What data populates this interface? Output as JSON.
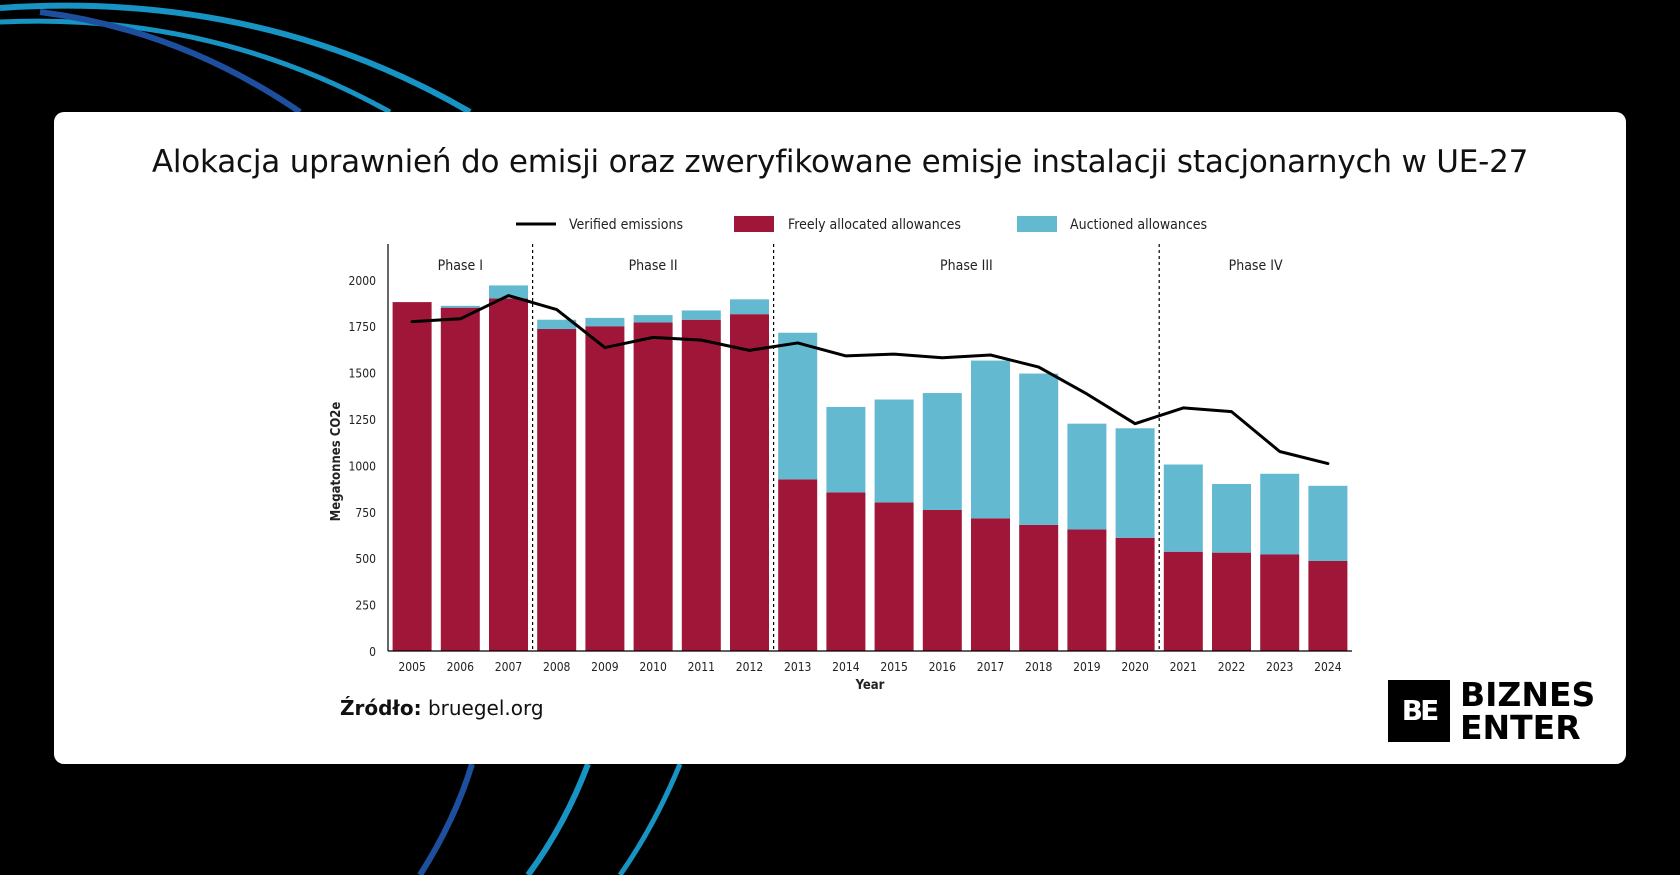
{
  "title": "Alokacja uprawnień do emisji oraz zweryfikowane emisje instalacji stacjonarnych w UE-27",
  "source": {
    "label": "Źródło:",
    "value": "bruegel.org"
  },
  "logo": {
    "mark": "BE",
    "line1": "BIZNES",
    "line2": "ENTER"
  },
  "colors": {
    "free": "#A01638",
    "auctioned": "#63B9D0",
    "verified": "#000000",
    "arc1": "#1E4F9E",
    "arc2": "#1794C3"
  },
  "chart_data": {
    "type": "bar",
    "stacked": true,
    "xlabel": "Year",
    "ylabel": "Megatonnes CO2e",
    "ylim": [
      0,
      2150
    ],
    "yticks": [
      0,
      250,
      500,
      750,
      1000,
      1250,
      1500,
      1750,
      2000
    ],
    "legend_position": "top-center",
    "categories": [
      "2005",
      "2006",
      "2007",
      "2008",
      "2009",
      "2010",
      "2011",
      "2012",
      "2013",
      "2014",
      "2015",
      "2016",
      "2017",
      "2018",
      "2019",
      "2020",
      "2021",
      "2022",
      "2023",
      "2024"
    ],
    "series": [
      {
        "name": "Freely allocated allowances",
        "kind": "bar",
        "values": [
          1880,
          1850,
          1900,
          1735,
          1750,
          1770,
          1785,
          1815,
          925,
          855,
          800,
          760,
          715,
          680,
          655,
          610,
          535,
          530,
          520,
          485
        ]
      },
      {
        "name": "Auctioned allowances",
        "kind": "bar",
        "values": [
          0,
          10,
          70,
          50,
          45,
          40,
          50,
          80,
          790,
          460,
          555,
          630,
          850,
          815,
          570,
          590,
          470,
          370,
          435,
          405
        ]
      },
      {
        "name": "Verified emissions",
        "kind": "line",
        "values": [
          1775,
          1790,
          1915,
          1840,
          1635,
          1690,
          1675,
          1620,
          1660,
          1590,
          1600,
          1580,
          1595,
          1530,
          1385,
          1225,
          1310,
          1290,
          1075,
          1010
        ]
      }
    ],
    "phases": [
      {
        "label": "Phase I",
        "start": 0,
        "end": 2
      },
      {
        "label": "Phase II",
        "start": 3,
        "end": 7
      },
      {
        "label": "Phase III",
        "start": 8,
        "end": 15
      },
      {
        "label": "Phase IV",
        "start": 16,
        "end": 19
      }
    ]
  }
}
